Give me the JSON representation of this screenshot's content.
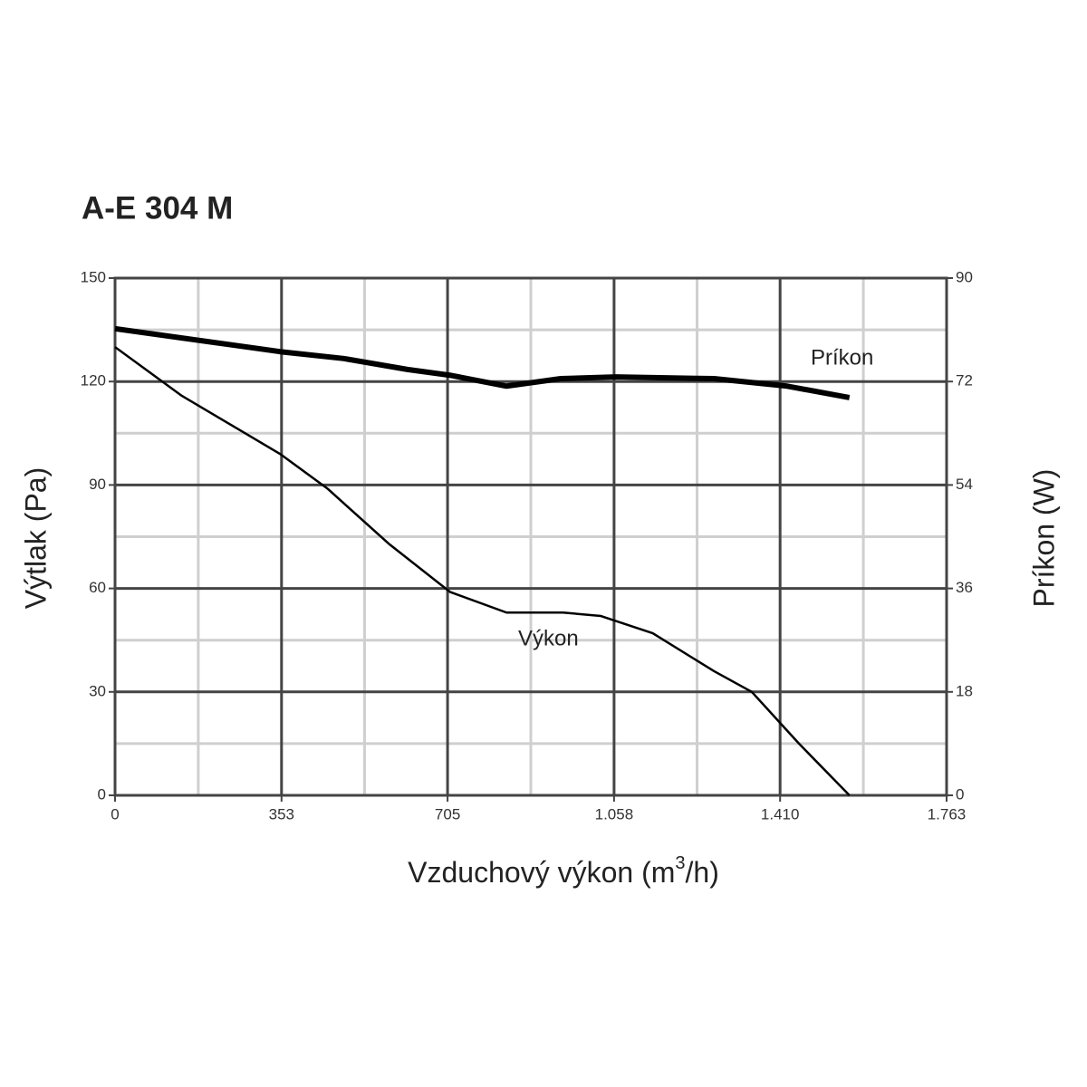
{
  "chart_data": {
    "type": "line",
    "title": "A-E 304 M",
    "xlabel_parts": [
      "Vzduchový výkon (m",
      "3",
      "/h)"
    ],
    "ylabel": "Výtlak (Pa)",
    "y2label": "Príkon (W)",
    "xlim": [
      0,
      1763
    ],
    "xticks": [
      0,
      353,
      705,
      {
        "value": 1058,
        "label": "1.058"
      },
      {
        "value": 1410,
        "label": "1.410"
      },
      {
        "value": 1763,
        "label": "1.763"
      }
    ],
    "ylim": [
      0,
      150
    ],
    "yticks": [
      0,
      30,
      60,
      90,
      120,
      150
    ],
    "y2lim": [
      0,
      90
    ],
    "y2ticks": [
      0,
      18,
      36,
      54,
      72,
      90
    ],
    "grid": true,
    "minor_grid": true,
    "series": [
      {
        "name": "Výkon",
        "color": "#000000",
        "line_width": 2.5,
        "x": [
          0,
          140,
          350,
          450,
          580,
          710,
          830,
          950,
          1030,
          1140,
          1270,
          1350,
          1450,
          1557
        ],
        "values": [
          130,
          116,
          99,
          89,
          73,
          59,
          53,
          53,
          52,
          47,
          36,
          30,
          15,
          0
        ]
      },
      {
        "name": "Príkon",
        "color": "#000000",
        "line_width": 6,
        "axis": "y2",
        "x": [
          0,
          350,
          485,
          620,
          710,
          830,
          945,
          1062,
          1270,
          1425,
          1557
        ],
        "values": [
          81.2,
          77.2,
          76,
          74.1,
          73.1,
          71.2,
          72.5,
          72.8,
          72.5,
          71.2,
          69.2
        ]
      }
    ]
  }
}
